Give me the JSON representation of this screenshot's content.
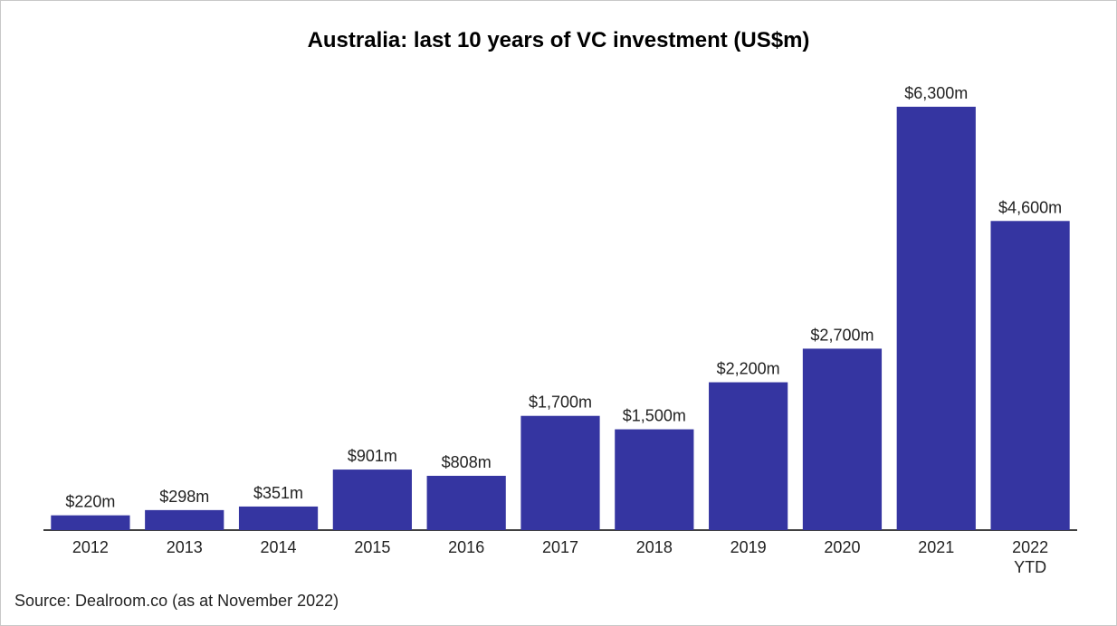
{
  "chart_data": {
    "type": "bar",
    "title": "Australia: last 10 years of VC investment (US$m)",
    "categories": [
      "2012",
      "2013",
      "2014",
      "2015",
      "2016",
      "2017",
      "2018",
      "2019",
      "2020",
      "2021",
      "2022 YTD"
    ],
    "values": [
      220,
      298,
      351,
      901,
      808,
      1700,
      1500,
      2200,
      2700,
      6300,
      4600
    ],
    "value_labels": [
      "$220m",
      "$298m",
      "$351m",
      "$901m",
      "$808m",
      "$1,700m",
      "$1,500m",
      "$2,200m",
      "$2,700m",
      "$6,300m",
      "$4,600m"
    ],
    "color": "#3535a1",
    "source": "Source: Dealroom.co (as at November 2022)"
  }
}
